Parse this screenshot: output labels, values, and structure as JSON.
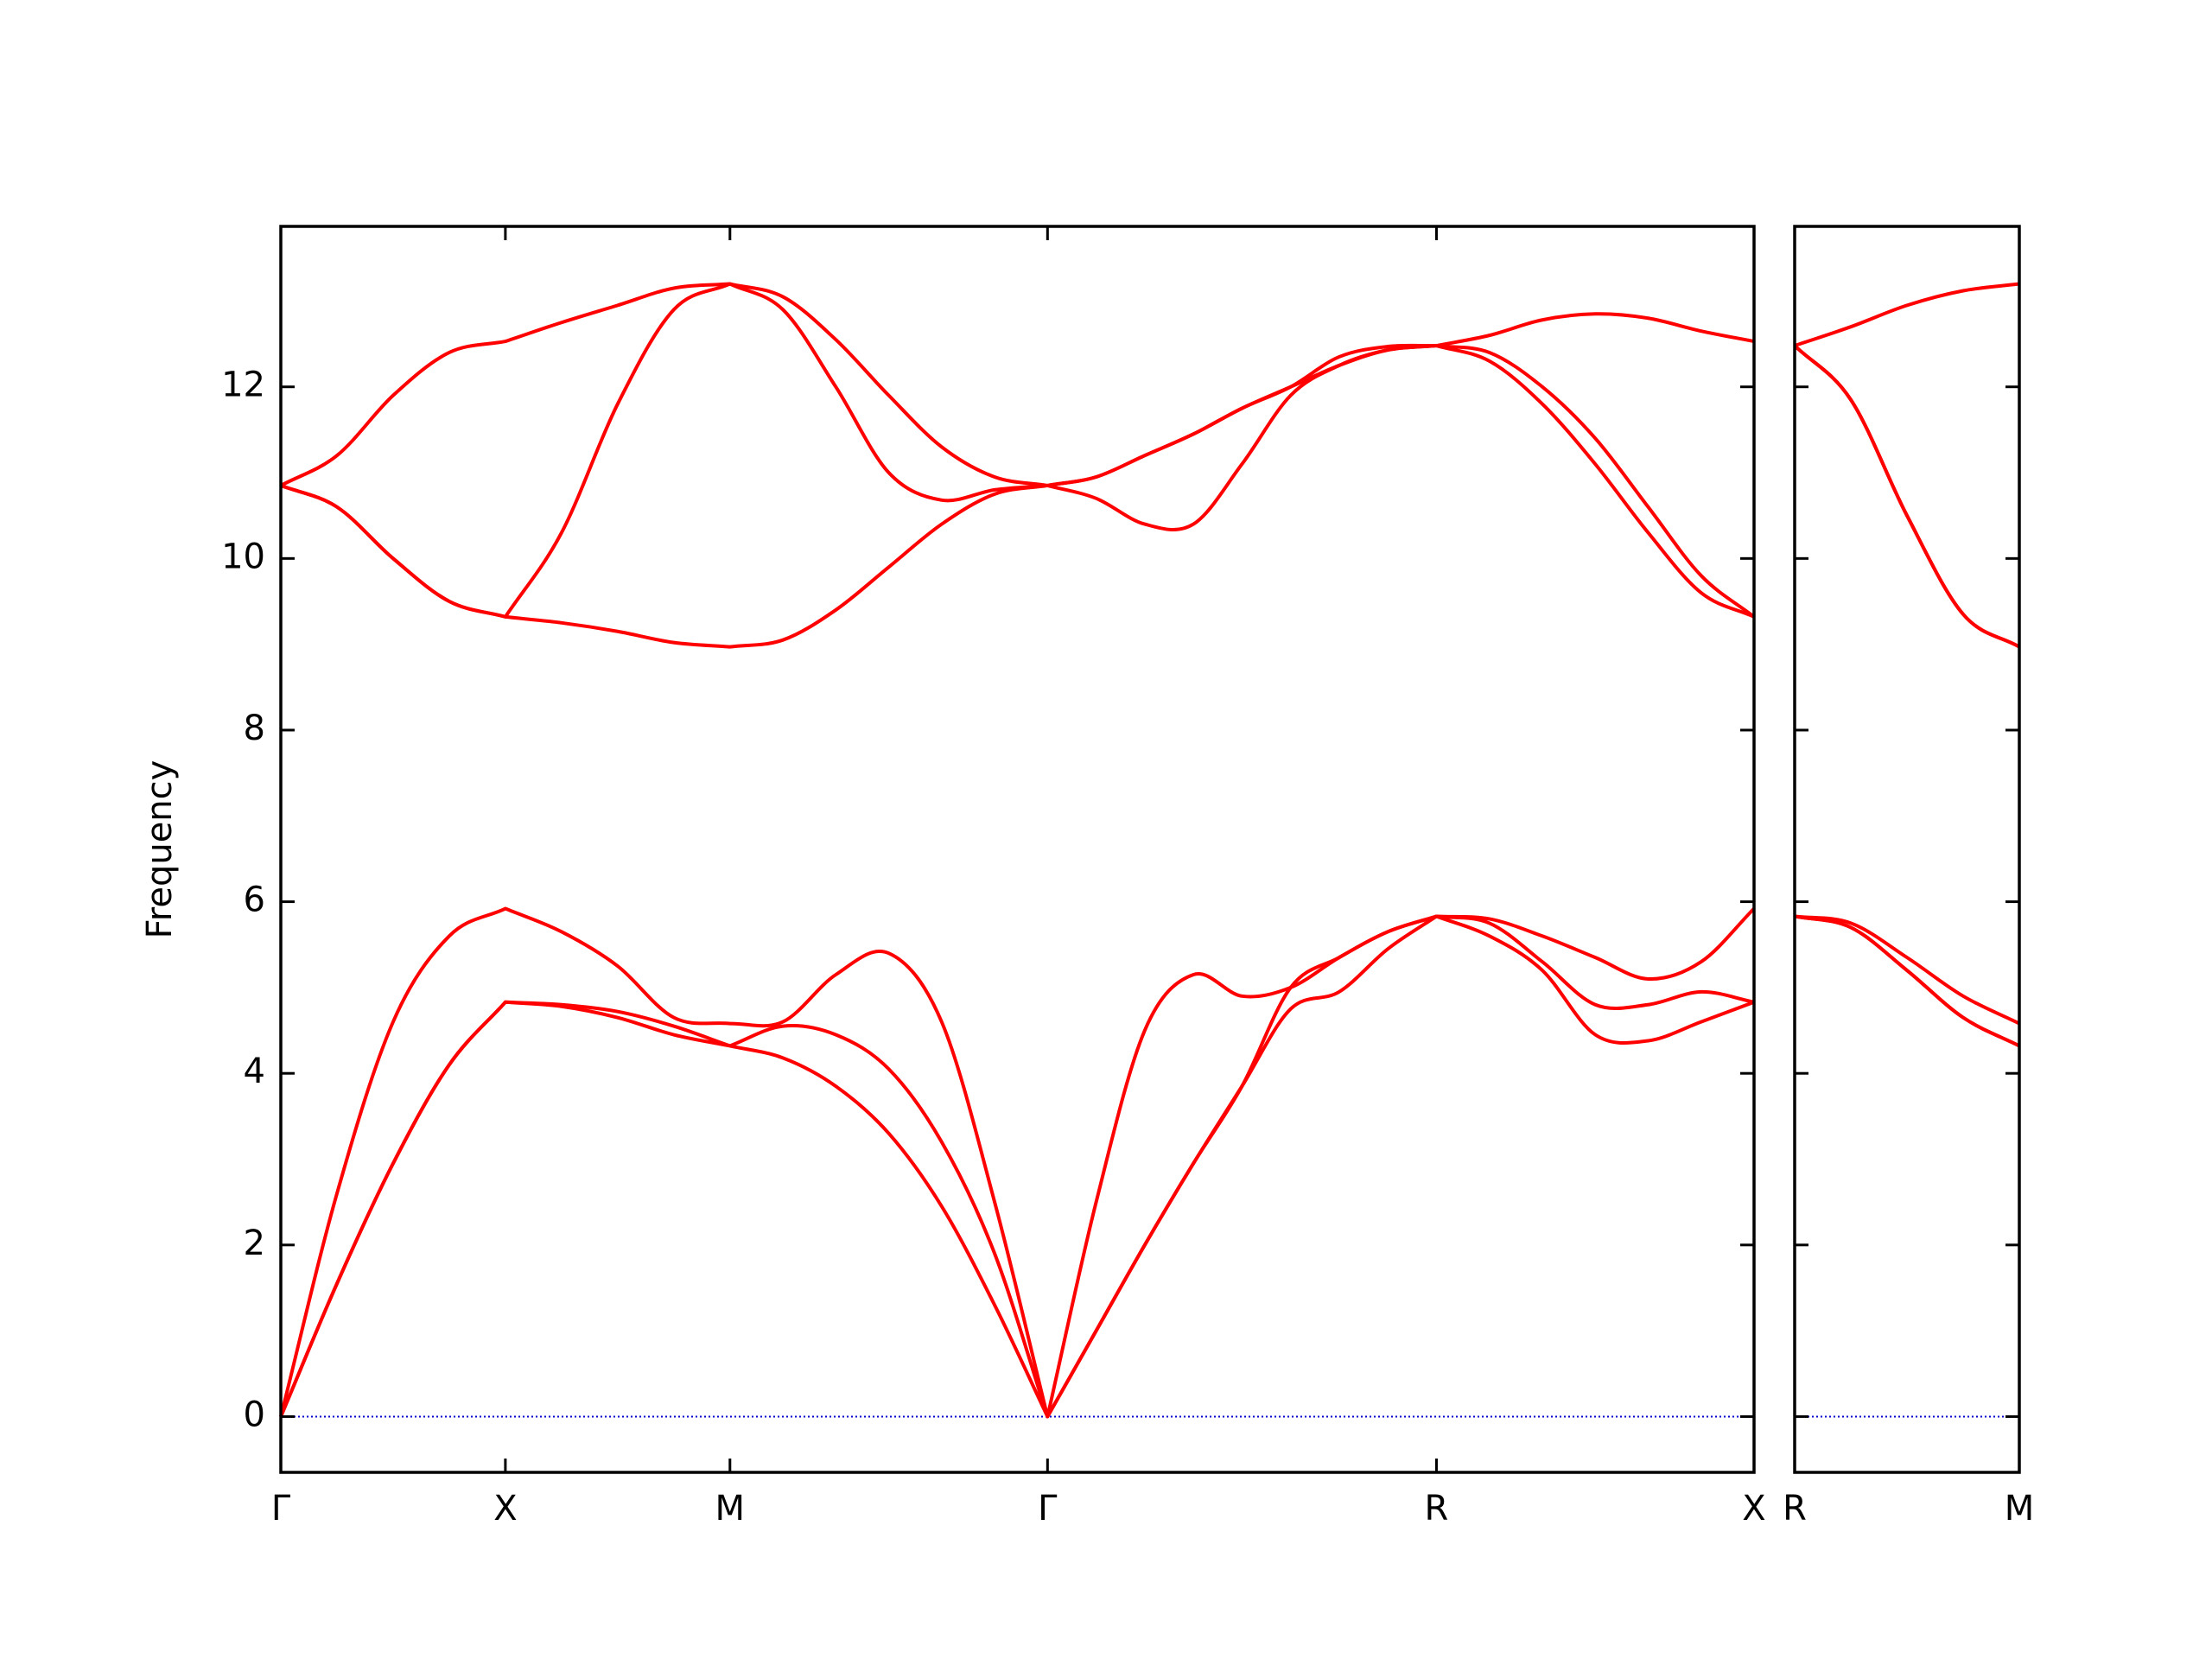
{
  "chart_data": [
    {
      "type": "line",
      "ylabel": "Frequency",
      "color": "#ff0000",
      "xlim": [
        0,
        3.2802
      ],
      "ylim": [
        -0.65,
        13.87
      ],
      "xticks": [
        {
          "value": 0,
          "label": "Γ"
        },
        {
          "value": 0.5,
          "label": "X"
        },
        {
          "value": 1.0,
          "label": "M"
        },
        {
          "value": 1.7071,
          "label": "Γ"
        },
        {
          "value": 2.5731,
          "label": "R"
        },
        {
          "value": 3.2802,
          "label": "X"
        }
      ],
      "yticks": [
        0,
        2,
        4,
        6,
        8,
        10,
        12
      ],
      "hline": 0,
      "hline_color": "#0000cc",
      "x": [
        0,
        0.125,
        0.25,
        0.375,
        0.5,
        0.625,
        0.75,
        0.875,
        1.0,
        1.1179,
        1.2357,
        1.3536,
        1.4714,
        1.5893,
        1.7071,
        1.8154,
        1.9236,
        2.0319,
        2.1401,
        2.2484,
        2.3566,
        2.4649,
        2.5731,
        2.691,
        2.8088,
        2.9267,
        3.0445,
        3.1624,
        3.2802
      ],
      "series": [
        {
          "values": [
            0,
            1.55,
            2.95,
            4.1,
            4.83,
            4.78,
            4.65,
            4.45,
            4.32,
            4.18,
            3.85,
            3.3,
            2.45,
            1.3,
            0,
            1.0,
            2.0,
            2.95,
            3.85,
            4.75,
            4.95,
            5.45,
            5.83,
            5.6,
            5.2,
            4.45,
            4.38,
            4.6,
            4.83
          ]
        },
        {
          "values": [
            0,
            1.55,
            2.95,
            4.1,
            4.83,
            4.8,
            4.72,
            4.55,
            4.32,
            4.55,
            4.45,
            4.05,
            3.2,
            1.9,
            0,
            1.0,
            2.0,
            2.95,
            3.85,
            5.0,
            5.35,
            5.65,
            5.83,
            5.75,
            5.3,
            4.8,
            4.8,
            4.95,
            4.83
          ]
        },
        {
          "values": [
            0,
            2.6,
            4.6,
            5.6,
            5.92,
            5.65,
            5.25,
            4.65,
            4.58,
            4.6,
            5.15,
            5.4,
            4.6,
            2.5,
            0,
            2.5,
            4.5,
            5.15,
            4.9,
            5.0,
            5.35,
            5.65,
            5.83,
            5.8,
            5.6,
            5.35,
            5.1,
            5.3,
            5.92
          ]
        },
        {
          "values": [
            10.85,
            10.6,
            10.0,
            9.5,
            9.32,
            9.25,
            9.15,
            9.02,
            8.97,
            9.05,
            9.4,
            9.9,
            10.4,
            10.75,
            10.85,
            10.7,
            10.4,
            10.4,
            11.1,
            11.9,
            12.25,
            12.43,
            12.48,
            12.3,
            11.8,
            11.1,
            10.3,
            9.6,
            9.32
          ]
        },
        {
          "values": [
            10.85,
            10.6,
            10.0,
            9.5,
            9.32,
            10.3,
            11.8,
            12.9,
            13.2,
            12.9,
            12.0,
            11.0,
            10.68,
            10.8,
            10.85,
            10.95,
            11.2,
            11.45,
            11.75,
            12.0,
            12.25,
            12.43,
            12.48,
            12.4,
            12.0,
            11.4,
            10.6,
            9.8,
            9.32
          ]
        },
        {
          "values": [
            10.85,
            11.2,
            11.9,
            12.4,
            12.53,
            12.75,
            12.95,
            13.15,
            13.2,
            13.05,
            12.55,
            11.9,
            11.3,
            10.95,
            10.85,
            10.95,
            11.2,
            11.45,
            11.75,
            12.0,
            12.35,
            12.47,
            12.48,
            12.6,
            12.78,
            12.85,
            12.8,
            12.65,
            12.53
          ]
        }
      ]
    },
    {
      "type": "line",
      "color": "#ff0000",
      "ytick_labels": false,
      "xlim": [
        0,
        0.5
      ],
      "ylim": [
        -0.65,
        13.87
      ],
      "xticks": [
        {
          "value": 0,
          "label": "R"
        },
        {
          "value": 0.5,
          "label": "M"
        }
      ],
      "yticks": [
        0,
        2,
        4,
        6,
        8,
        10,
        12
      ],
      "hline": 0,
      "hline_color": "#0000cc",
      "x": [
        0,
        0.125,
        0.25,
        0.375,
        0.5
      ],
      "series": [
        {
          "values": [
            5.83,
            5.7,
            5.2,
            4.65,
            4.32
          ]
        },
        {
          "values": [
            5.83,
            5.7,
            5.2,
            4.65,
            4.32
          ]
        },
        {
          "values": [
            5.83,
            5.75,
            5.35,
            4.9,
            4.58
          ]
        },
        {
          "values": [
            12.48,
            11.85,
            10.5,
            9.35,
            8.97
          ]
        },
        {
          "values": [
            12.48,
            11.85,
            10.5,
            9.35,
            8.97
          ]
        },
        {
          "values": [
            12.48,
            12.7,
            12.95,
            13.12,
            13.2
          ]
        }
      ]
    }
  ]
}
